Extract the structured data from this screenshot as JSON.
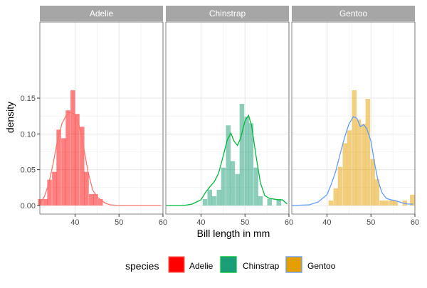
{
  "chart_data": {
    "type": "histogram-density",
    "xlabel": "Bill length in mm",
    "ylabel": "density",
    "xlim": [
      32,
      60
    ],
    "ylim": [
      0,
      0.16
    ],
    "x_ticks": [
      40,
      50,
      60
    ],
    "y_ticks": [
      0.0,
      0.05,
      0.1,
      0.15
    ],
    "y_tick_labels": [
      "0.00",
      "0.05",
      "0.10",
      "0.15"
    ],
    "grid": true,
    "bin_width": 1.05,
    "legend": {
      "title": "species",
      "position": "bottom",
      "entries": [
        "Adelie",
        "Chinstrap",
        "Gentoo"
      ]
    },
    "panels": [
      {
        "name": "Adelie",
        "fill_color": "#FF0000",
        "fill_opacity": 0.5,
        "key_fill": "#FF0000",
        "key_border": "#F8766D",
        "line_color": "#F8766D",
        "bins": [
          {
            "x": 32.1,
            "y": 0.009
          },
          {
            "x": 33.2,
            "y": 0.009
          },
          {
            "x": 34.2,
            "y": 0.036
          },
          {
            "x": 35.3,
            "y": 0.047
          },
          {
            "x": 36.3,
            "y": 0.106
          },
          {
            "x": 37.4,
            "y": 0.094
          },
          {
            "x": 38.4,
            "y": 0.133
          },
          {
            "x": 39.5,
            "y": 0.161
          },
          {
            "x": 40.5,
            "y": 0.128
          },
          {
            "x": 41.6,
            "y": 0.11
          },
          {
            "x": 42.6,
            "y": 0.047
          },
          {
            "x": 43.7,
            "y": 0.016
          },
          {
            "x": 44.7,
            "y": 0.016
          },
          {
            "x": 45.8,
            "y": 0.009
          }
        ],
        "density": [
          {
            "x": 32.1,
            "y": 0.004
          },
          {
            "x": 33.0,
            "y": 0.012
          },
          {
            "x": 34.0,
            "y": 0.03
          },
          {
            "x": 35.0,
            "y": 0.058
          },
          {
            "x": 36.0,
            "y": 0.09
          },
          {
            "x": 37.0,
            "y": 0.114
          },
          {
            "x": 38.0,
            "y": 0.126
          },
          {
            "x": 39.0,
            "y": 0.13
          },
          {
            "x": 40.0,
            "y": 0.127
          },
          {
            "x": 41.0,
            "y": 0.11
          },
          {
            "x": 42.0,
            "y": 0.08
          },
          {
            "x": 43.0,
            "y": 0.046
          },
          {
            "x": 44.0,
            "y": 0.022
          },
          {
            "x": 45.0,
            "y": 0.012
          },
          {
            "x": 46.0,
            "y": 0.007
          },
          {
            "x": 47.0,
            "y": 0.003
          },
          {
            "x": 48.0,
            "y": 0.001
          },
          {
            "x": 50.0,
            "y": 0.0
          },
          {
            "x": 55.0,
            "y": 0.0
          },
          {
            "x": 59.6,
            "y": 0.0
          }
        ]
      },
      {
        "name": "Chinstrap",
        "fill_color": "#1B9E77",
        "fill_opacity": 0.5,
        "key_fill": "#1B9E77",
        "key_border": "#00BA38",
        "line_color": "#00BA38",
        "bins": [
          {
            "x": 40.9,
            "y": 0.009
          },
          {
            "x": 42.0,
            "y": 0.022
          },
          {
            "x": 43.0,
            "y": 0.013
          },
          {
            "x": 44.1,
            "y": 0.022
          },
          {
            "x": 45.1,
            "y": 0.053
          },
          {
            "x": 46.2,
            "y": 0.112
          },
          {
            "x": 47.2,
            "y": 0.062
          },
          {
            "x": 48.3,
            "y": 0.044
          },
          {
            "x": 49.3,
            "y": 0.142
          },
          {
            "x": 50.4,
            "y": 0.124
          },
          {
            "x": 51.4,
            "y": 0.115
          },
          {
            "x": 52.5,
            "y": 0.053
          },
          {
            "x": 53.5,
            "y": 0.013
          },
          {
            "x": 54.6,
            "y": 0.0
          },
          {
            "x": 55.6,
            "y": 0.009
          },
          {
            "x": 56.7,
            "y": 0.0
          },
          {
            "x": 57.7,
            "y": 0.009
          },
          {
            "x": 58.8,
            "y": 0.0
          }
        ],
        "density": [
          {
            "x": 32.1,
            "y": 0.0
          },
          {
            "x": 36.0,
            "y": 0.0
          },
          {
            "x": 38.0,
            "y": 0.002
          },
          {
            "x": 40.0,
            "y": 0.008
          },
          {
            "x": 41.0,
            "y": 0.018
          },
          {
            "x": 42.0,
            "y": 0.026
          },
          {
            "x": 43.0,
            "y": 0.033
          },
          {
            "x": 44.0,
            "y": 0.045
          },
          {
            "x": 45.0,
            "y": 0.068
          },
          {
            "x": 46.0,
            "y": 0.092
          },
          {
            "x": 46.8,
            "y": 0.101
          },
          {
            "x": 47.5,
            "y": 0.09
          },
          {
            "x": 48.3,
            "y": 0.084
          },
          {
            "x": 49.0,
            "y": 0.094
          },
          {
            "x": 50.0,
            "y": 0.118
          },
          {
            "x": 50.8,
            "y": 0.126
          },
          {
            "x": 51.5,
            "y": 0.112
          },
          {
            "x": 52.5,
            "y": 0.07
          },
          {
            "x": 53.5,
            "y": 0.032
          },
          {
            "x": 54.5,
            "y": 0.014
          },
          {
            "x": 55.5,
            "y": 0.01
          },
          {
            "x": 56.5,
            "y": 0.009
          },
          {
            "x": 57.5,
            "y": 0.008
          },
          {
            "x": 58.5,
            "y": 0.008
          },
          {
            "x": 59.6,
            "y": 0.002
          }
        ]
      },
      {
        "name": "Gentoo",
        "fill_color": "#E69F00",
        "fill_opacity": 0.5,
        "key_fill": "#E69F00",
        "key_border": "#619CFF",
        "line_color": "#619CFF",
        "bins": [
          {
            "x": 40.9,
            "y": 0.007
          },
          {
            "x": 42.0,
            "y": 0.024
          },
          {
            "x": 43.0,
            "y": 0.054
          },
          {
            "x": 44.1,
            "y": 0.087
          },
          {
            "x": 45.1,
            "y": 0.105
          },
          {
            "x": 46.2,
            "y": 0.161
          },
          {
            "x": 47.2,
            "y": 0.12
          },
          {
            "x": 48.3,
            "y": 0.114
          },
          {
            "x": 49.3,
            "y": 0.149
          },
          {
            "x": 50.4,
            "y": 0.065
          },
          {
            "x": 51.4,
            "y": 0.037
          },
          {
            "x": 52.5,
            "y": 0.007
          },
          {
            "x": 53.5,
            "y": 0.007
          },
          {
            "x": 54.6,
            "y": 0.007
          },
          {
            "x": 55.6,
            "y": 0.007
          },
          {
            "x": 57.7,
            "y": 0.007
          },
          {
            "x": 58.8,
            "y": 0.0
          },
          {
            "x": 59.4,
            "y": 0.015
          }
        ],
        "density": [
          {
            "x": 32.1,
            "y": 0.0
          },
          {
            "x": 36.0,
            "y": 0.001
          },
          {
            "x": 38.0,
            "y": 0.005
          },
          {
            "x": 40.0,
            "y": 0.015
          },
          {
            "x": 41.0,
            "y": 0.03
          },
          {
            "x": 42.0,
            "y": 0.048
          },
          {
            "x": 43.0,
            "y": 0.072
          },
          {
            "x": 44.0,
            "y": 0.095
          },
          {
            "x": 45.0,
            "y": 0.114
          },
          {
            "x": 46.0,
            "y": 0.124
          },
          {
            "x": 46.8,
            "y": 0.122
          },
          {
            "x": 47.6,
            "y": 0.11
          },
          {
            "x": 48.3,
            "y": 0.113
          },
          {
            "x": 49.0,
            "y": 0.108
          },
          {
            "x": 50.0,
            "y": 0.09
          },
          {
            "x": 50.8,
            "y": 0.06
          },
          {
            "x": 51.6,
            "y": 0.035
          },
          {
            "x": 52.5,
            "y": 0.018
          },
          {
            "x": 53.5,
            "y": 0.01
          },
          {
            "x": 54.5,
            "y": 0.008
          },
          {
            "x": 55.5,
            "y": 0.007
          },
          {
            "x": 56.5,
            "y": 0.005
          },
          {
            "x": 57.5,
            "y": 0.003
          },
          {
            "x": 58.5,
            "y": 0.002
          },
          {
            "x": 59.6,
            "y": 0.002
          }
        ]
      }
    ]
  }
}
